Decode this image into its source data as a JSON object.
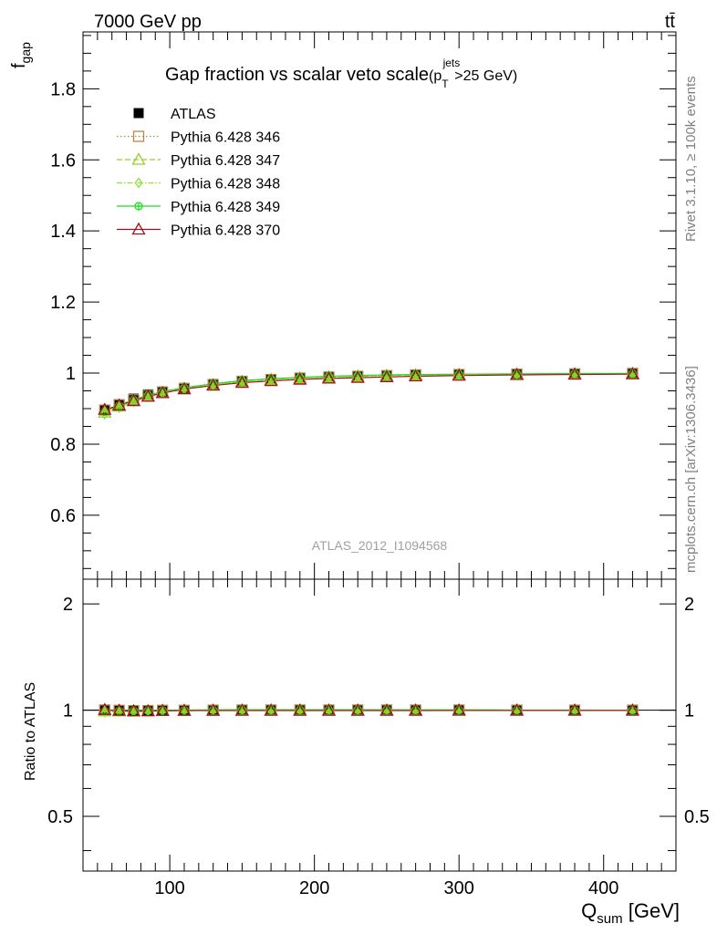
{
  "header": {
    "energy": "7000 GeV pp",
    "process": "tt̄",
    "side_rivet": "Rivet 3.1.10, ≥ 100k events",
    "side_mcplots": "mcplots.cern.ch [arXiv:1306.3436]",
    "watermark": "ATLAS_2012_I1094568"
  },
  "chart_data": {
    "type": "scatter",
    "title": "Gap fraction vs scalar veto scale",
    "title_suffix_main": "(p",
    "title_suffix_sub": "T",
    "title_suffix_sup": "jets",
    "title_suffix_end": ">25 GeV)",
    "ylabel_main": "f",
    "ylabel_sub": "gap",
    "ratio_ylabel": "Ratio to ATLAS",
    "xlabel_main": "Q",
    "xlabel_sub": "sum",
    "xlabel_unit": " [GeV]",
    "xlim": [
      40,
      450
    ],
    "ylim": [
      0.42,
      1.96
    ],
    "ratio_ylim": [
      0.35,
      2.35
    ],
    "x_ticks": [
      "100",
      "200",
      "300",
      "400"
    ],
    "y_ticks": [
      "0.6",
      "0.8",
      "1",
      "1.2",
      "1.4",
      "1.6",
      "1.8"
    ],
    "ratio_ticks": [
      "0.5",
      "1",
      "2"
    ],
    "x": [
      55,
      65,
      75,
      85,
      95,
      110,
      130,
      150,
      170,
      190,
      210,
      230,
      250,
      270,
      300,
      340,
      380,
      420
    ],
    "series": [
      {
        "name": "ATLAS",
        "color": "#000000",
        "marker": "square-filled",
        "values": [
          0.895,
          0.912,
          0.928,
          0.94,
          0.948,
          0.958,
          0.968,
          0.976,
          0.981,
          0.985,
          0.988,
          0.99,
          0.992,
          0.994,
          0.995,
          0.997,
          0.998,
          0.999
        ],
        "ratio": [
          1,
          1,
          1,
          1,
          1,
          1,
          1,
          1,
          1,
          1,
          1,
          1,
          1,
          1,
          1,
          1,
          1,
          1
        ]
      },
      {
        "name": "Pythia 6.428 346",
        "color": "#b8864b",
        "marker": "square-open",
        "dash": "1.5,2.5",
        "values": [
          0.896,
          0.911,
          0.925,
          0.937,
          0.947,
          0.957,
          0.968,
          0.977,
          0.982,
          0.986,
          0.989,
          0.991,
          0.993,
          0.995,
          0.996,
          0.997,
          0.998,
          0.999
        ],
        "ratio": [
          1.001,
          0.999,
          0.997,
          0.997,
          0.999,
          0.999,
          1.0,
          1.001,
          1.001,
          1.001,
          1.001,
          1.001,
          1.001,
          1.001,
          1.001,
          1.0,
          1.0,
          1.0
        ]
      },
      {
        "name": "Pythia 6.428 347",
        "color": "#9acd32",
        "marker": "triangle-open",
        "dash": "6,3",
        "values": [
          0.889,
          0.906,
          0.921,
          0.934,
          0.944,
          0.955,
          0.967,
          0.976,
          0.982,
          0.986,
          0.989,
          0.991,
          0.993,
          0.995,
          0.996,
          0.997,
          0.998,
          0.999
        ],
        "ratio": [
          0.993,
          0.993,
          0.992,
          0.994,
          0.996,
          0.997,
          0.999,
          1.0,
          1.001,
          1.001,
          1.001,
          1.001,
          1.001,
          1.001,
          1.001,
          1.0,
          1.0,
          1.0
        ]
      },
      {
        "name": "Pythia 6.428 348",
        "color": "#8fe03a",
        "marker": "diamond-open",
        "dash": "6,2,1.5,2",
        "values": [
          0.884,
          0.903,
          0.919,
          0.933,
          0.944,
          0.955,
          0.967,
          0.976,
          0.982,
          0.986,
          0.989,
          0.992,
          0.994,
          0.995,
          0.996,
          0.997,
          0.998,
          0.999
        ],
        "ratio": [
          0.988,
          0.99,
          0.99,
          0.993,
          0.996,
          0.997,
          0.999,
          1.0,
          1.001,
          1.001,
          1.001,
          1.002,
          1.002,
          1.001,
          1.001,
          1.0,
          1.0,
          1.0
        ]
      },
      {
        "name": "Pythia 6.428 349",
        "color": "#22dd22",
        "marker": "circle-cross",
        "dash": "",
        "values": [
          0.891,
          0.909,
          0.925,
          0.938,
          0.948,
          0.959,
          0.97,
          0.979,
          0.984,
          0.988,
          0.991,
          0.993,
          0.995,
          0.996,
          0.997,
          0.998,
          0.999,
          0.999
        ],
        "ratio": [
          0.996,
          0.997,
          0.997,
          0.998,
          1.0,
          1.001,
          1.002,
          1.003,
          1.003,
          1.003,
          1.003,
          1.003,
          1.003,
          1.002,
          1.002,
          1.001,
          1.001,
          1.0
        ]
      },
      {
        "name": "Pythia 6.428 370",
        "color": "#a01020",
        "marker": "triangle-open",
        "dash": "",
        "values": [
          0.897,
          0.909,
          0.922,
          0.934,
          0.944,
          0.955,
          0.965,
          0.973,
          0.978,
          0.982,
          0.985,
          0.987,
          0.989,
          0.991,
          0.993,
          0.995,
          0.996,
          0.997
        ],
        "ratio": [
          1.002,
          0.997,
          0.994,
          0.994,
          0.996,
          0.997,
          0.997,
          0.997,
          0.997,
          0.997,
          0.997,
          0.997,
          0.997,
          0.997,
          0.998,
          0.998,
          0.998,
          0.998
        ]
      }
    ]
  }
}
